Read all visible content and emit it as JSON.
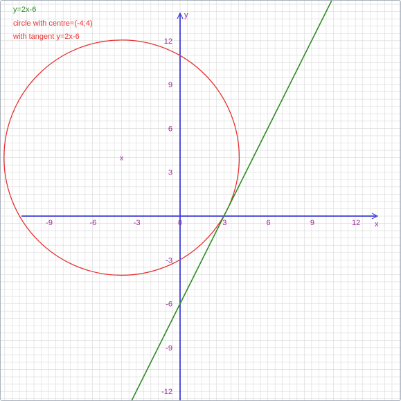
{
  "legend": {
    "line_label": "y=2x-6",
    "circle_label": "circle with centre=(-4;4)",
    "tangent_label": "with tangent y=2x-6"
  },
  "colors": {
    "line": "#2e8b22",
    "circle": "#e83030",
    "axes": "#3b3bd6",
    "ticks": "#9a2a9a",
    "grid": "#d8d8d8",
    "marker": "#9a2a9a"
  },
  "axes": {
    "x_label": "x",
    "y_label": "y",
    "x_ticks": [
      "-9",
      "-6",
      "-3",
      "0",
      "3",
      "6",
      "9",
      "12"
    ],
    "y_ticks": [
      "12",
      "9",
      "6",
      "3",
      "-3",
      "-6",
      "-9",
      "-12"
    ]
  },
  "chart_data": {
    "type": "line",
    "xlim": [
      -12,
      13.5
    ],
    "ylim": [
      -12.5,
      13.5
    ],
    "grid": true,
    "line": {
      "slope": 2,
      "intercept": -6
    },
    "circle": {
      "center": [
        -4,
        4
      ],
      "radius": 8.05
    },
    "centre_marker": "x"
  }
}
